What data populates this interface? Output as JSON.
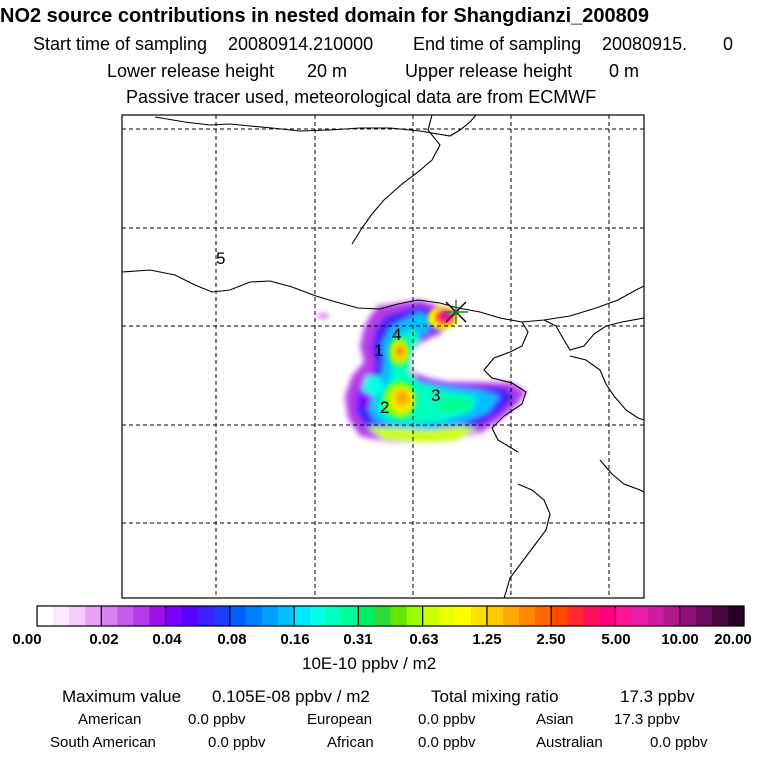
{
  "header": {
    "title": "NO2 source contributions in nested domain for Shangdianzi_200809",
    "start_label": "Start time of sampling",
    "start_value": "20080914.210000",
    "end_label": "End time of sampling",
    "end_value": "20080915.",
    "end_suffix": "0",
    "lower_label": "Lower release height",
    "lower_value": "20 m",
    "upper_label": "Upper release height",
    "upper_value": "0 m",
    "info": "Passive tracer used, meteorological data are from ECMWF"
  },
  "map": {
    "region_labels": [
      "1",
      "2",
      "3",
      "4",
      "5"
    ],
    "receptor_marker": "star-cross",
    "colors": {
      "frame": "#000000",
      "grid": "#000000",
      "coast": "#000000"
    }
  },
  "colorbar": {
    "unit": "10E-10 ppbv / m2",
    "ticks": [
      "0.00",
      "0.02",
      "0.04",
      "0.08",
      "0.16",
      "0.31",
      "0.63",
      "1.25",
      "2.50",
      "5.00",
      "10.00",
      "20.00"
    ],
    "colors": [
      "#ffffff",
      "#fde8fd",
      "#f5c9f8",
      "#e9a3f5",
      "#d982f2",
      "#c65cef",
      "#b43bea",
      "#9f10e6",
      "#8000ff",
      "#5a00ff",
      "#3d20ff",
      "#1f3bff",
      "#0060ff",
      "#0080ff",
      "#00a0ff",
      "#00c0ff",
      "#00e8ff",
      "#00ffe6",
      "#00ffc0",
      "#00ff99",
      "#00ef66",
      "#2ddc3a",
      "#66e600",
      "#99ff00",
      "#ccff00",
      "#eaff00",
      "#ffff00",
      "#ffe000",
      "#ffc800",
      "#ffa800",
      "#ff8800",
      "#ff6a00",
      "#ff4a00",
      "#ff2a2a",
      "#ff1060",
      "#ff0080",
      "#ff1493",
      "#e81ea8",
      "#d01ca0",
      "#b0188c",
      "#901078",
      "#6e0a60",
      "#4a063f",
      "#2a0028"
    ]
  },
  "stats": {
    "max_label": "Maximum value",
    "max_value": "0.105E-08 ppbv / m2",
    "total_label": "Total mixing ratio",
    "total_value": "17.3 ppbv",
    "regions": [
      {
        "name": "American",
        "value": "0.0 ppbv"
      },
      {
        "name": "European",
        "value": "0.0 ppbv"
      },
      {
        "name": "Asian",
        "value": "17.3 ppbv"
      },
      {
        "name": "South American",
        "value": "0.0 ppbv"
      },
      {
        "name": "African",
        "value": "0.0 ppbv"
      },
      {
        "name": "Australian",
        "value": "0.0 ppbv"
      }
    ]
  }
}
